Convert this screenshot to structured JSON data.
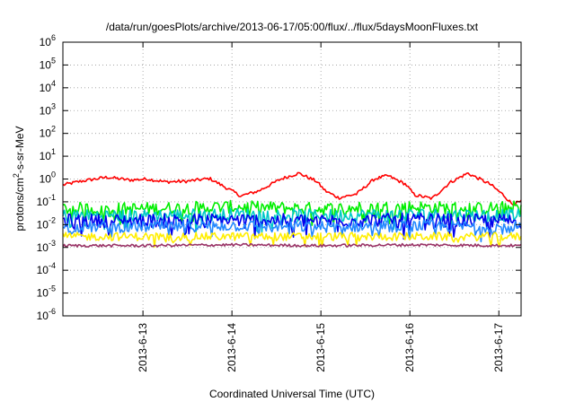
{
  "chart_data": {
    "type": "line",
    "title": "/data/run/goesPlots/archive/2013-06-17/05:00/flux/../flux/5daysMoonFluxes.txt",
    "xlabel": "Coordinated Universal Time (UTC)",
    "ylabel": "protons/cm²-s-sr-MeV",
    "ylabel_parts": {
      "pre": "protons/cm",
      "sup": "2",
      "post": "-s-sr-MeV"
    },
    "yscale": "log",
    "ylim": [
      1e-06,
      1000000.0
    ],
    "y_ticks": [
      {
        "base": "10",
        "exp": "-6",
        "value": 1e-06
      },
      {
        "base": "10",
        "exp": "-5",
        "value": 1e-05
      },
      {
        "base": "10",
        "exp": "-4",
        "value": 0.0001
      },
      {
        "base": "10",
        "exp": "-3",
        "value": 0.001
      },
      {
        "base": "10",
        "exp": "-2",
        "value": 0.01
      },
      {
        "base": "10",
        "exp": "-1",
        "value": 0.1
      },
      {
        "base": "10",
        "exp": "0",
        "value": 1
      },
      {
        "base": "10",
        "exp": "1",
        "value": 10.0
      },
      {
        "base": "10",
        "exp": "2",
        "value": 100.0
      },
      {
        "base": "10",
        "exp": "3",
        "value": 1000.0
      },
      {
        "base": "10",
        "exp": "4",
        "value": 10000.0
      },
      {
        "base": "10",
        "exp": "5",
        "value": 100000.0
      },
      {
        "base": "10",
        "exp": "6",
        "value": 1000000.0
      }
    ],
    "xlim_days": [
      12.1,
      17.25
    ],
    "x_ticks": [
      {
        "label": "2013-6-13",
        "day": 13
      },
      {
        "label": "2013-6-14",
        "day": 14
      },
      {
        "label": "2013-6-15",
        "day": 15
      },
      {
        "label": "2013-6-16",
        "day": 16
      },
      {
        "label": "2013-6-17",
        "day": 17
      }
    ],
    "grid": true,
    "legend": "none",
    "series": [
      {
        "color": "#ff0000",
        "noise": 0.07,
        "points": [
          [
            12.1,
            0.55
          ],
          [
            12.3,
            0.8
          ],
          [
            12.6,
            1.2
          ],
          [
            12.85,
            0.9
          ],
          [
            13.05,
            1.0
          ],
          [
            13.25,
            0.75
          ],
          [
            13.5,
            0.8
          ],
          [
            13.75,
            1.05
          ],
          [
            14.0,
            0.3
          ],
          [
            14.1,
            0.18
          ],
          [
            14.3,
            0.3
          ],
          [
            14.55,
            1.0
          ],
          [
            14.75,
            1.8
          ],
          [
            14.95,
            0.8
          ],
          [
            15.05,
            0.3
          ],
          [
            15.2,
            0.15
          ],
          [
            15.4,
            0.22
          ],
          [
            15.6,
            1.0
          ],
          [
            15.75,
            1.4
          ],
          [
            15.95,
            0.6
          ],
          [
            16.05,
            0.2
          ],
          [
            16.25,
            0.14
          ],
          [
            16.45,
            0.7
          ],
          [
            16.65,
            1.8
          ],
          [
            16.9,
            0.6
          ],
          [
            17.05,
            0.2
          ],
          [
            17.15,
            0.08
          ],
          [
            17.25,
            0.1
          ]
        ]
      },
      {
        "color": "#00ee00",
        "noise": 0.28,
        "points": [
          [
            12.1,
            0.05
          ],
          [
            13.0,
            0.05
          ],
          [
            14.0,
            0.06
          ],
          [
            15.0,
            0.05
          ],
          [
            16.0,
            0.06
          ],
          [
            16.8,
            0.05
          ],
          [
            17.25,
            0.06
          ]
        ]
      },
      {
        "color": "#00c8c8",
        "noise": 0.28,
        "points": [
          [
            12.1,
            0.025
          ],
          [
            13.0,
            0.025
          ],
          [
            14.0,
            0.028
          ],
          [
            15.0,
            0.025
          ],
          [
            16.0,
            0.028
          ],
          [
            17.25,
            0.025
          ]
        ]
      },
      {
        "color": "#0000ee",
        "noise": 0.3,
        "points": [
          [
            12.1,
            0.015
          ],
          [
            13.0,
            0.015
          ],
          [
            14.0,
            0.016
          ],
          [
            15.0,
            0.015
          ],
          [
            16.0,
            0.016
          ],
          [
            17.25,
            0.015
          ]
        ]
      },
      {
        "color": "#2288ff",
        "noise": 0.25,
        "points": [
          [
            12.1,
            0.008
          ],
          [
            13.0,
            0.008
          ],
          [
            14.0,
            0.009
          ],
          [
            15.0,
            0.008
          ],
          [
            16.0,
            0.009
          ],
          [
            17.25,
            0.008
          ]
        ]
      },
      {
        "color": "#ffee00",
        "noise": 0.18,
        "points": [
          [
            12.1,
            0.003
          ],
          [
            13.0,
            0.003
          ],
          [
            14.0,
            0.003
          ],
          [
            15.0,
            0.003
          ],
          [
            16.0,
            0.003
          ],
          [
            17.25,
            0.003
          ]
        ]
      },
      {
        "color": "#993366",
        "noise": 0.06,
        "points": [
          [
            12.1,
            0.0012
          ],
          [
            13.0,
            0.0012
          ],
          [
            14.0,
            0.0013
          ],
          [
            15.0,
            0.0012
          ],
          [
            16.0,
            0.0013
          ],
          [
            17.25,
            0.0012
          ]
        ]
      }
    ]
  }
}
